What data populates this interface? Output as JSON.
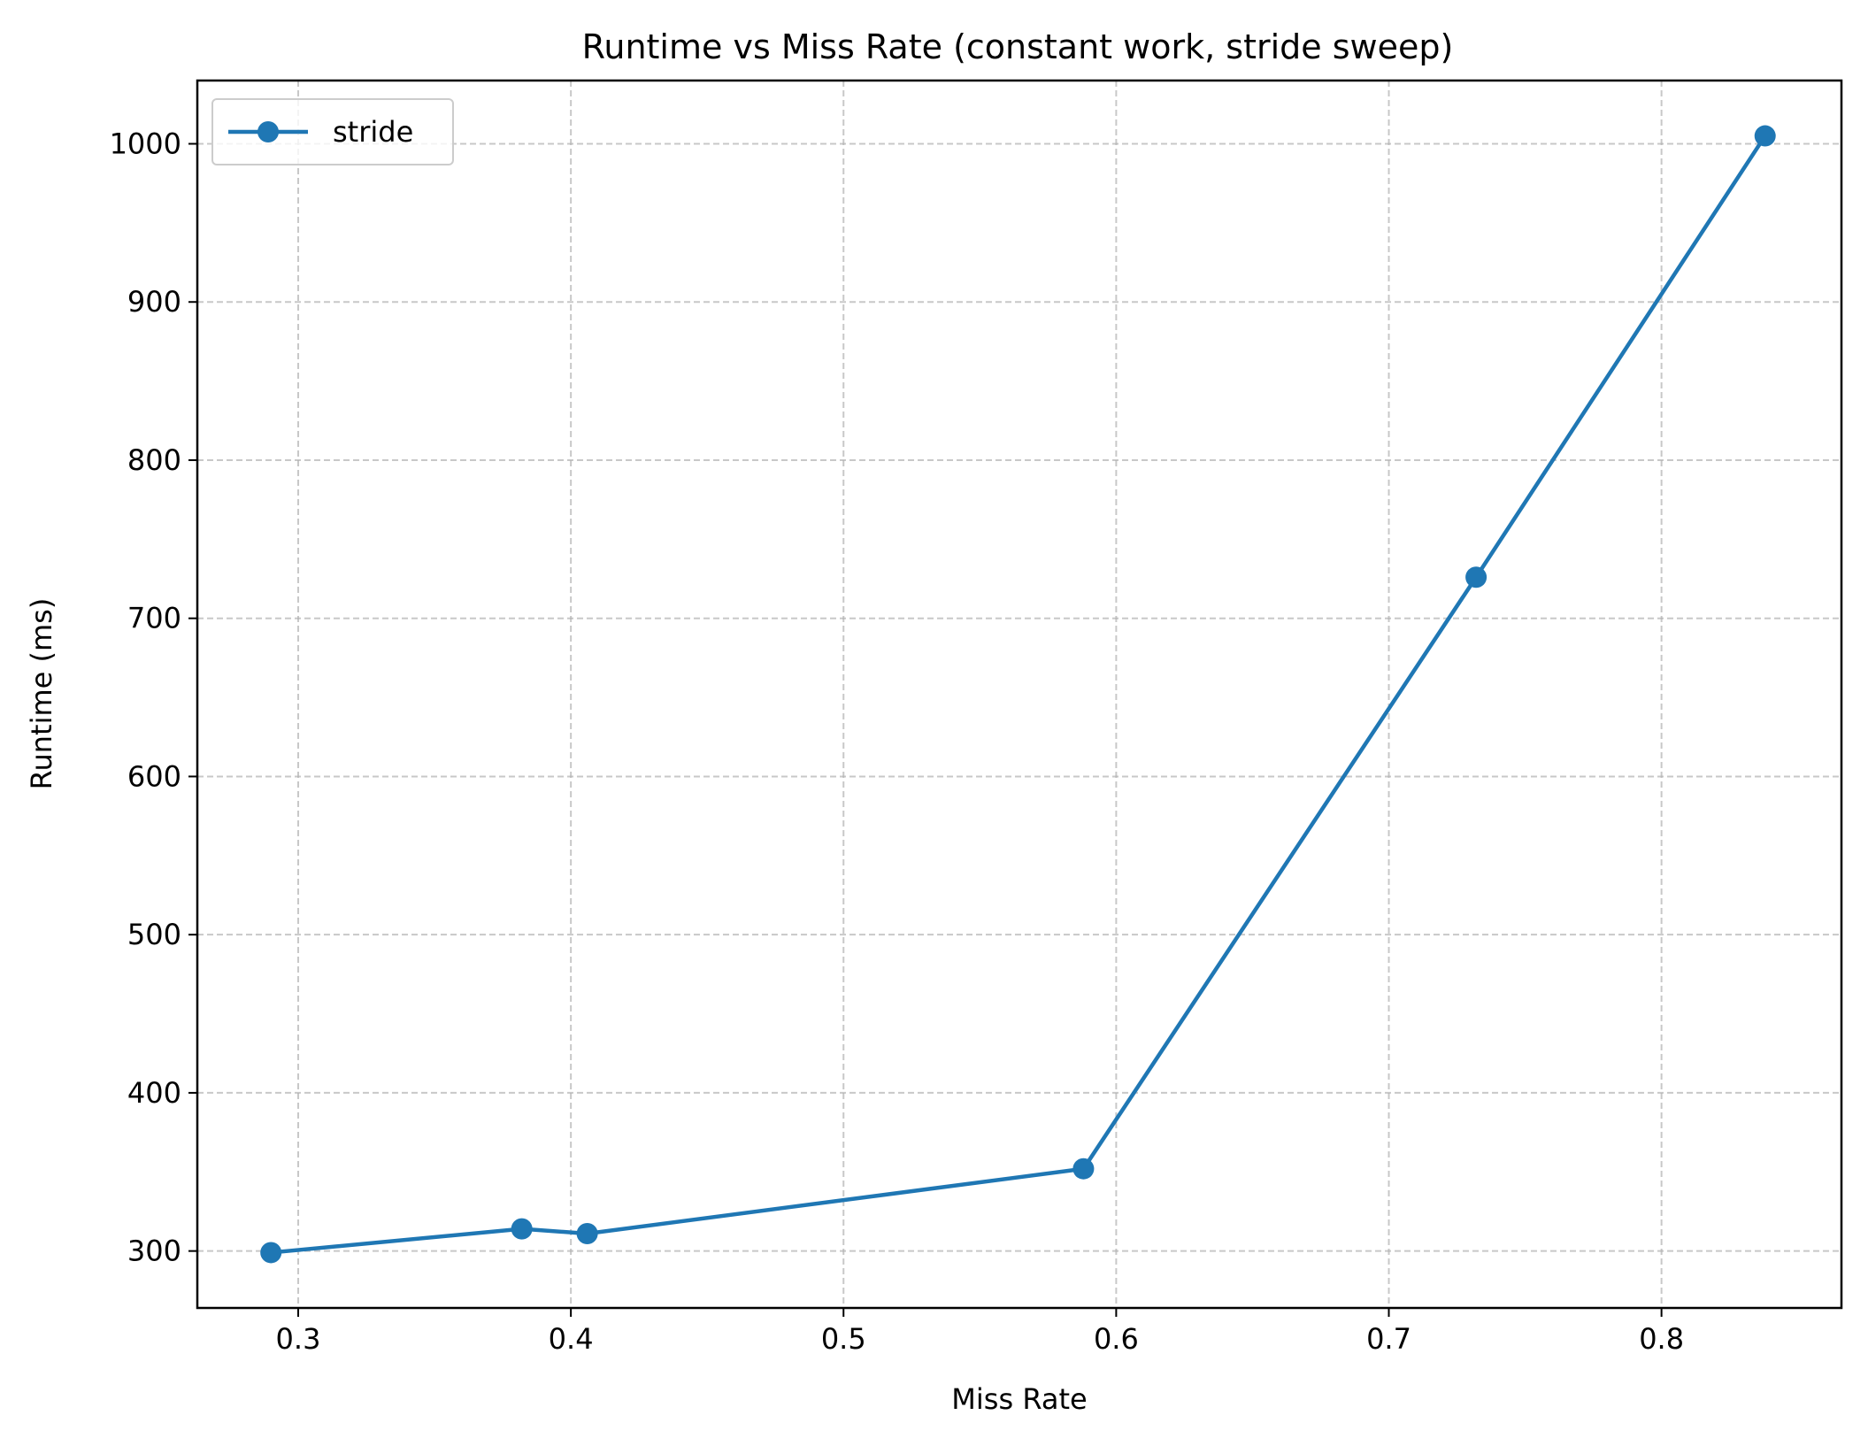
{
  "chart_data": {
    "type": "line",
    "title": "Runtime vs Miss Rate (constant work, stride sweep)",
    "xlabel": "Miss Rate",
    "ylabel": "Runtime (ms)",
    "xlim": [
      0.263,
      0.866
    ],
    "ylim": [
      264,
      1040
    ],
    "xticks": [
      0.3,
      0.4,
      0.5,
      0.6,
      0.7,
      0.8
    ],
    "xtick_labels": [
      "0.3",
      "0.4",
      "0.5",
      "0.6",
      "0.7",
      "0.8"
    ],
    "yticks": [
      300,
      400,
      500,
      600,
      700,
      800,
      900,
      1000
    ],
    "ytick_labels": [
      "300",
      "400",
      "500",
      "600",
      "700",
      "800",
      "900",
      "1000"
    ],
    "grid": true,
    "legend": "upper-left",
    "series": [
      {
        "name": "stride",
        "color": "#1f77b4",
        "marker": "circle",
        "x": [
          0.29,
          0.382,
          0.406,
          0.588,
          0.732,
          0.838
        ],
        "y": [
          299,
          314,
          311,
          352,
          726,
          1005
        ]
      }
    ]
  }
}
